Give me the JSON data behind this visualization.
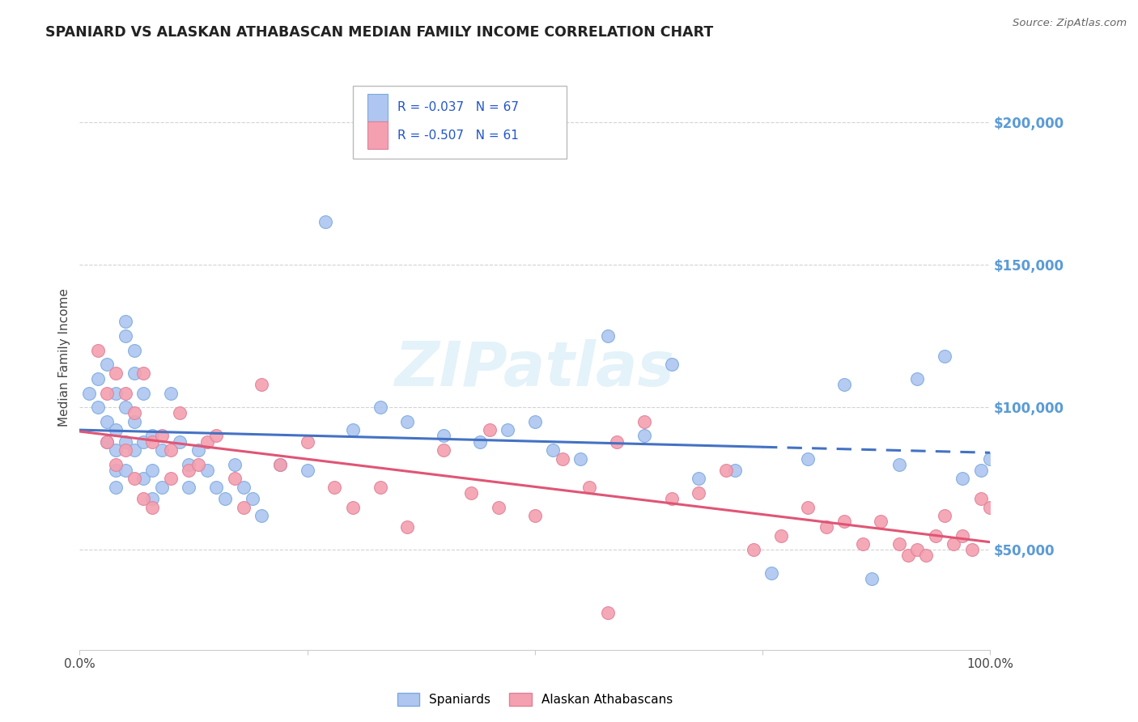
{
  "title": "SPANIARD VS ALASKAN ATHABASCAN MEDIAN FAMILY INCOME CORRELATION CHART",
  "source_text": "Source: ZipAtlas.com",
  "ylabel": "Median Family Income",
  "watermark": "ZIPatlas",
  "legend_line1": "R = -0.037   N = 67",
  "legend_line2": "R = -0.507   N = 61",
  "legend_label_spaniards": "Spaniards",
  "legend_label_athabascan": "Alaskan Athabascans",
  "y_tick_labels": [
    "$50,000",
    "$100,000",
    "$150,000",
    "$200,000"
  ],
  "y_tick_values": [
    50000,
    100000,
    150000,
    200000
  ],
  "y_tick_color": "#5b9bd5",
  "xlim": [
    0.0,
    1.0
  ],
  "ylim": [
    15000,
    220000
  ],
  "background_color": "#ffffff",
  "grid_color": "#c8c8c8",
  "blue_line_color": "#4472c4",
  "pink_line_color": "#e05575",
  "blue_dot_color": "#aec6f0",
  "pink_dot_color": "#f4a0b0",
  "blue_dot_edge": "#7baade",
  "pink_dot_edge": "#e08098",
  "spaniards_x": [
    0.01,
    0.02,
    0.02,
    0.03,
    0.03,
    0.03,
    0.04,
    0.04,
    0.04,
    0.04,
    0.04,
    0.05,
    0.05,
    0.05,
    0.05,
    0.05,
    0.06,
    0.06,
    0.06,
    0.06,
    0.07,
    0.07,
    0.07,
    0.08,
    0.08,
    0.08,
    0.09,
    0.09,
    0.1,
    0.11,
    0.12,
    0.12,
    0.13,
    0.14,
    0.15,
    0.16,
    0.17,
    0.18,
    0.19,
    0.2,
    0.22,
    0.25,
    0.27,
    0.3,
    0.33,
    0.36,
    0.4,
    0.44,
    0.47,
    0.5,
    0.52,
    0.55,
    0.58,
    0.62,
    0.65,
    0.68,
    0.72,
    0.76,
    0.8,
    0.84,
    0.87,
    0.9,
    0.92,
    0.95,
    0.97,
    0.99,
    1.0
  ],
  "spaniards_y": [
    105000,
    110000,
    100000,
    115000,
    95000,
    88000,
    105000,
    92000,
    85000,
    78000,
    72000,
    130000,
    125000,
    100000,
    88000,
    78000,
    120000,
    112000,
    95000,
    85000,
    105000,
    88000,
    75000,
    90000,
    78000,
    68000,
    85000,
    72000,
    105000,
    88000,
    80000,
    72000,
    85000,
    78000,
    72000,
    68000,
    80000,
    72000,
    68000,
    62000,
    80000,
    78000,
    165000,
    92000,
    100000,
    95000,
    90000,
    88000,
    92000,
    95000,
    85000,
    82000,
    125000,
    90000,
    115000,
    75000,
    78000,
    42000,
    82000,
    108000,
    40000,
    80000,
    110000,
    118000,
    75000,
    78000,
    82000
  ],
  "athabascan_x": [
    0.02,
    0.03,
    0.03,
    0.04,
    0.04,
    0.05,
    0.05,
    0.06,
    0.06,
    0.07,
    0.07,
    0.08,
    0.08,
    0.09,
    0.1,
    0.1,
    0.11,
    0.12,
    0.13,
    0.14,
    0.15,
    0.17,
    0.18,
    0.2,
    0.22,
    0.25,
    0.28,
    0.3,
    0.33,
    0.36,
    0.4,
    0.43,
    0.46,
    0.5,
    0.53,
    0.56,
    0.59,
    0.62,
    0.65,
    0.68,
    0.71,
    0.74,
    0.77,
    0.8,
    0.82,
    0.84,
    0.86,
    0.88,
    0.9,
    0.91,
    0.92,
    0.93,
    0.94,
    0.95,
    0.96,
    0.97,
    0.98,
    0.99,
    1.0,
    0.58,
    0.45
  ],
  "athabascan_y": [
    120000,
    105000,
    88000,
    112000,
    80000,
    105000,
    85000,
    98000,
    75000,
    112000,
    68000,
    88000,
    65000,
    90000,
    85000,
    75000,
    98000,
    78000,
    80000,
    88000,
    90000,
    75000,
    65000,
    108000,
    80000,
    88000,
    72000,
    65000,
    72000,
    58000,
    85000,
    70000,
    65000,
    62000,
    82000,
    72000,
    88000,
    95000,
    68000,
    70000,
    78000,
    50000,
    55000,
    65000,
    58000,
    60000,
    52000,
    60000,
    52000,
    48000,
    50000,
    48000,
    55000,
    62000,
    52000,
    55000,
    50000,
    68000,
    65000,
    28000,
    92000
  ]
}
